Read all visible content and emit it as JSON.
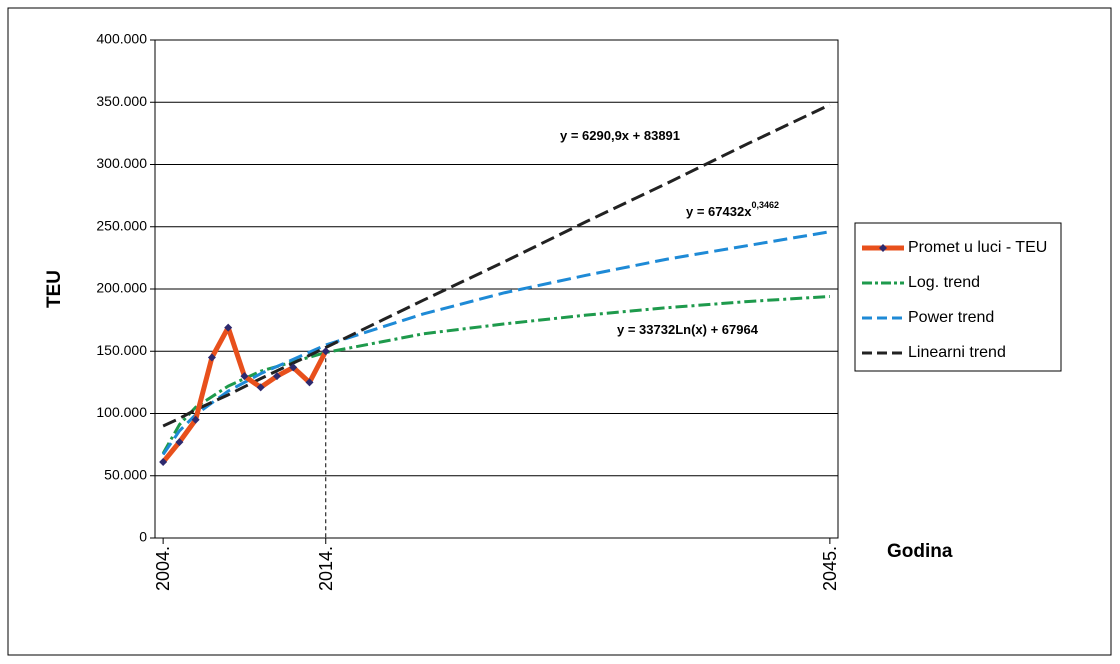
{
  "chart_data": {
    "type": "line",
    "y_label": "TEU",
    "x_label": "Godina",
    "xlim": [
      2003.5,
      2045.5
    ],
    "xticks": [
      {
        "value": 2004,
        "label": "2004."
      },
      {
        "value": 2014,
        "label": "2014."
      },
      {
        "value": 2045,
        "label": "2045."
      }
    ],
    "ylim": [
      0,
      400000
    ],
    "yticks": [
      0,
      {
        "value": 50000,
        "label": "50.000"
      },
      {
        "value": 100000,
        "label": "100.000"
      },
      {
        "value": 150000,
        "label": "150.000"
      },
      {
        "value": 200000,
        "label": "200.000"
      },
      {
        "value": 250000,
        "label": "250.000"
      },
      {
        "value": 300000,
        "label": "300.000"
      },
      {
        "value": 350000,
        "label": "350.000"
      },
      {
        "value": 400000,
        "label": "400.000"
      }
    ],
    "grid": true,
    "series": [
      {
        "name": "Promet u luci - TEU",
        "color": "#e8501c",
        "marker_color": "#2e2a6e",
        "style": "solid",
        "x": [
          2004,
          2005,
          2006,
          2007,
          2008,
          2009,
          2010,
          2011,
          2012,
          2013,
          2014
        ],
        "values": [
          61000,
          77000,
          95000,
          145000,
          169000,
          130000,
          121000,
          130000,
          137000,
          125000,
          150000
        ]
      },
      {
        "name": "Log. trend",
        "color": "#1e9a4c",
        "style": "dashdot",
        "x": [
          2004,
          2005,
          2006,
          2008,
          2010,
          2014,
          2020,
          2025,
          2030,
          2035,
          2040,
          2045
        ],
        "values": [
          68000,
          91000,
          105000,
          122000,
          134000,
          149000,
          164000,
          172000,
          179000,
          185000,
          190000,
          194000
        ]
      },
      {
        "name": "Power trend",
        "color": "#1e8ad6",
        "style": "dash",
        "x": [
          2004,
          2005,
          2006,
          2008,
          2010,
          2014,
          2020,
          2025,
          2030,
          2035,
          2040,
          2045
        ],
        "values": [
          67000,
          86000,
          99000,
          118000,
          132000,
          155000,
          180000,
          197000,
          211000,
          224000,
          235000,
          246000
        ]
      },
      {
        "name": "Linearni trend",
        "color": "#222222",
        "style": "dash",
        "x": [
          2004,
          2005,
          2006,
          2008,
          2010,
          2014,
          2020,
          2025,
          2030,
          2035,
          2040,
          2045
        ],
        "values": [
          90000,
          96000,
          103000,
          115000,
          128000,
          153000,
          191000,
          222000,
          254000,
          285000,
          317000,
          348000
        ]
      }
    ],
    "annotations": [
      {
        "text": "y = 6290,9x + 83891"
      },
      {
        "text": "y = 67432x",
        "sup": "0,3462"
      },
      {
        "text": "y = 33732Ln(x) + 67964"
      }
    ]
  }
}
